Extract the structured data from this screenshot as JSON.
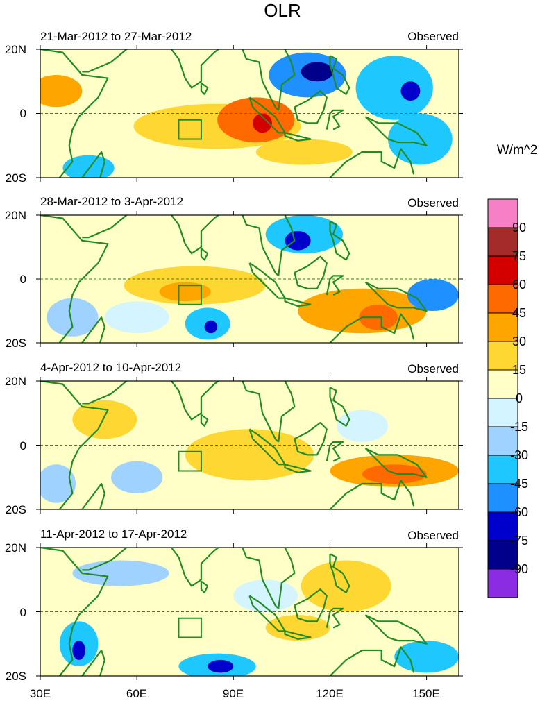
{
  "chart_data": {
    "type": "heatmap",
    "title": "OLR",
    "units": "W/m^2",
    "x_ticks": [
      "30E",
      "60E",
      "90E",
      "120E",
      "150E"
    ],
    "x_tick_values": [
      30,
      60,
      90,
      120,
      150
    ],
    "xlim": [
      30,
      160
    ],
    "y_ticks": [
      "20N",
      "0",
      "20S"
    ],
    "y_tick_values": [
      20,
      0,
      -20
    ],
    "ylim": [
      -20,
      20
    ],
    "legend": {
      "labels": [
        "90",
        "75",
        "60",
        "45",
        "30",
        "15",
        "0",
        "-15",
        "-30",
        "-45",
        "-60",
        "-75",
        "-90"
      ],
      "colors": [
        "#f77fc6",
        "#a52a2a",
        "#d40000",
        "#ff6a00",
        "#ffa500",
        "#ffd732",
        "#ffffc8",
        "#d4f5ff",
        "#a0d2ff",
        "#1ec8ff",
        "#1e90ff",
        "#0000cd",
        "#00008b",
        "#8b2be2"
      ]
    },
    "panels": [
      {
        "title": "21-Mar-2012 to 27-Mar-2012",
        "label": "Observed",
        "blobs": [
          {
            "lon": 85,
            "lat": -4,
            "rx": 26,
            "ry": 7,
            "v": 25
          },
          {
            "lon": 97,
            "lat": -2,
            "rx": 12,
            "ry": 7,
            "v": 45
          },
          {
            "lon": 99,
            "lat": -3,
            "rx": 3,
            "ry": 3,
            "v": 65
          },
          {
            "lon": 113,
            "lat": 12,
            "rx": 12,
            "ry": 7,
            "v": -50
          },
          {
            "lon": 116,
            "lat": 13,
            "rx": 5,
            "ry": 3,
            "v": -85
          },
          {
            "lon": 140,
            "lat": 8,
            "rx": 12,
            "ry": 10,
            "v": -40
          },
          {
            "lon": 145,
            "lat": 7,
            "rx": 3,
            "ry": 3,
            "v": -70
          },
          {
            "lon": 148,
            "lat": -8,
            "rx": 10,
            "ry": 8,
            "v": -35
          },
          {
            "lon": 35,
            "lat": 7,
            "rx": 8,
            "ry": 5,
            "v": 35
          },
          {
            "lon": 45,
            "lat": -17,
            "rx": 8,
            "ry": 4,
            "v": -40
          },
          {
            "lon": 112,
            "lat": -12,
            "rx": 15,
            "ry": 4,
            "v": 20
          }
        ]
      },
      {
        "title": "28-Mar-2012 to 3-Apr-2012",
        "label": "Observed",
        "blobs": [
          {
            "lon": 78,
            "lat": -2,
            "rx": 22,
            "ry": 6,
            "v": 28
          },
          {
            "lon": 75,
            "lat": -4,
            "rx": 8,
            "ry": 3,
            "v": 40
          },
          {
            "lon": 130,
            "lat": -10,
            "rx": 20,
            "ry": 7,
            "v": 30
          },
          {
            "lon": 135,
            "lat": -12,
            "rx": 6,
            "ry": 4,
            "v": 45
          },
          {
            "lon": 112,
            "lat": 14,
            "rx": 12,
            "ry": 6,
            "v": -45
          },
          {
            "lon": 110,
            "lat": 12,
            "rx": 4,
            "ry": 3,
            "v": -70
          },
          {
            "lon": 152,
            "lat": -5,
            "rx": 8,
            "ry": 5,
            "v": -50
          },
          {
            "lon": 82,
            "lat": -14,
            "rx": 7,
            "ry": 5,
            "v": -35
          },
          {
            "lon": 83,
            "lat": -15,
            "rx": 2,
            "ry": 2,
            "v": -75
          },
          {
            "lon": 40,
            "lat": -12,
            "rx": 8,
            "ry": 6,
            "v": -20
          },
          {
            "lon": 60,
            "lat": -12,
            "rx": 10,
            "ry": 5,
            "v": -15
          }
        ]
      },
      {
        "title": "4-Apr-2012 to 10-Apr-2012",
        "label": "Observed",
        "blobs": [
          {
            "lon": 140,
            "lat": -8,
            "rx": 20,
            "ry": 5,
            "v": 40
          },
          {
            "lon": 140,
            "lat": -9,
            "rx": 10,
            "ry": 3,
            "v": 50
          },
          {
            "lon": 95,
            "lat": -3,
            "rx": 20,
            "ry": 8,
            "v": 22
          },
          {
            "lon": 130,
            "lat": 6,
            "rx": 8,
            "ry": 5,
            "v": -15
          },
          {
            "lon": 60,
            "lat": -10,
            "rx": 8,
            "ry": 5,
            "v": -30
          },
          {
            "lon": 35,
            "lat": -12,
            "rx": 6,
            "ry": 6,
            "v": -20
          },
          {
            "lon": 50,
            "lat": 8,
            "rx": 10,
            "ry": 6,
            "v": 20
          }
        ]
      },
      {
        "title": "11-Apr-2012 to 17-Apr-2012",
        "label": "Observed",
        "blobs": [
          {
            "lon": 42,
            "lat": -10,
            "rx": 6,
            "ry": 7,
            "v": -45
          },
          {
            "lon": 42,
            "lat": -12,
            "rx": 2,
            "ry": 3,
            "v": -75
          },
          {
            "lon": 85,
            "lat": -17,
            "rx": 12,
            "ry": 4,
            "v": -45
          },
          {
            "lon": 86,
            "lat": -17,
            "rx": 4,
            "ry": 2,
            "v": -75
          },
          {
            "lon": 150,
            "lat": -14,
            "rx": 10,
            "ry": 5,
            "v": -35
          },
          {
            "lon": 125,
            "lat": 8,
            "rx": 14,
            "ry": 8,
            "v": 20
          },
          {
            "lon": 110,
            "lat": -5,
            "rx": 10,
            "ry": 4,
            "v": 20
          },
          {
            "lon": 55,
            "lat": 12,
            "rx": 15,
            "ry": 4,
            "v": -25
          },
          {
            "lon": 100,
            "lat": 5,
            "rx": 10,
            "ry": 5,
            "v": -15
          }
        ]
      }
    ]
  }
}
